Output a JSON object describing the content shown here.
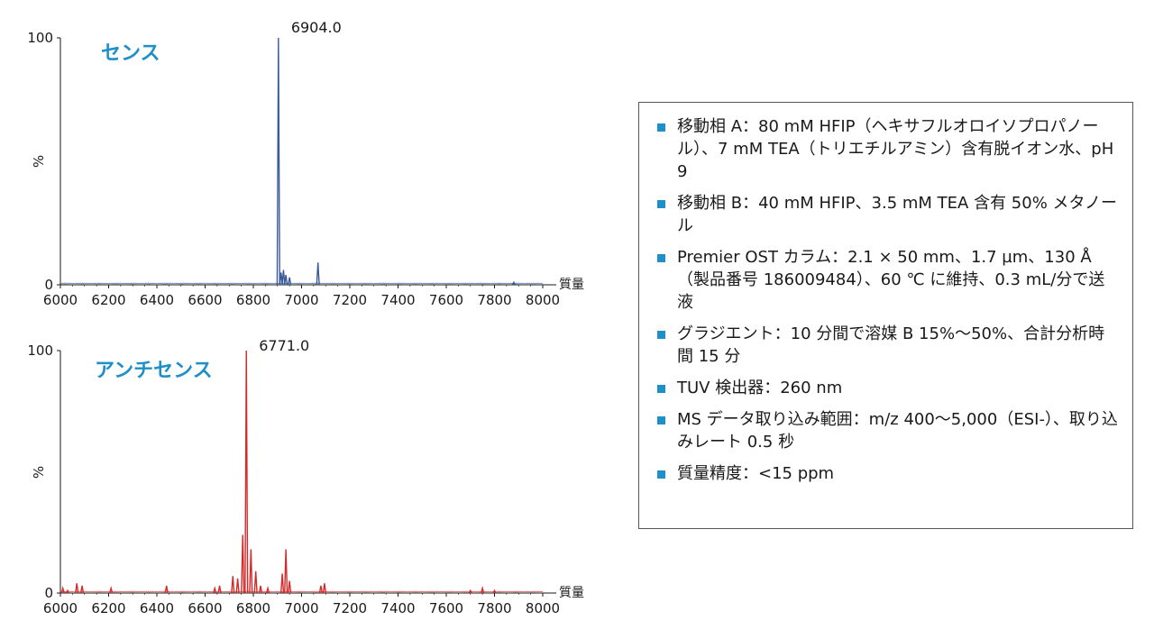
{
  "chart_data": [
    {
      "type": "bar",
      "title": "センス",
      "annotation": "6904.0",
      "xlabel": "質量",
      "ylabel": "%",
      "xlim": [
        6000,
        8000
      ],
      "ylim": [
        0,
        100
      ],
      "xticks": [
        "6000",
        "6200",
        "6400",
        "6600",
        "6800",
        "7000",
        "7200",
        "7400",
        "7600",
        "7800",
        "8000"
      ],
      "yticks": [
        "0",
        "100"
      ],
      "color": "#3a5a9a",
      "grid": false,
      "x": [
        6904,
        6915,
        6925,
        6935,
        6950,
        7068,
        7880
      ],
      "values": [
        100,
        5,
        6,
        4,
        3,
        9,
        1
      ]
    },
    {
      "type": "bar",
      "title": "アンチセンス",
      "annotation": "6771.0",
      "xlabel": "質量",
      "ylabel": "%",
      "xlim": [
        6000,
        8000
      ],
      "ylim": [
        0,
        100
      ],
      "xticks": [
        "6000",
        "6200",
        "6400",
        "6600",
        "6800",
        "7000",
        "7200",
        "7400",
        "7600",
        "7800",
        "8000"
      ],
      "yticks": [
        "0",
        "100"
      ],
      "color": "#d42a2a",
      "grid": false,
      "x": [
        6010,
        6030,
        6068,
        6090,
        6210,
        6440,
        6640,
        6660,
        6715,
        6735,
        6756,
        6771,
        6790,
        6810,
        6830,
        6860,
        6920,
        6935,
        6950,
        7080,
        7095,
        7700,
        7750,
        7800
      ],
      "values": [
        2,
        1,
        4,
        3,
        2,
        3,
        2,
        3,
        7,
        6,
        24,
        100,
        18,
        9,
        3,
        2,
        8,
        18,
        5,
        3,
        4,
        1,
        2,
        1
      ]
    }
  ],
  "conditions": {
    "items": [
      "移動相 A：80 mM HFIP（ヘキサフルオロイソプロパノール）、7 mM TEA（トリエチルアミン）含有脱イオン水、pH 9",
      "移動相 B：40 mM HFIP、3.5 mM TEA 含有 50% メタノール",
      "Premier OST カラム：2.1 × 50 mm、1.7 µm、130 Å（製品番号 186009484）、60 ℃ に維持、0.3 mL/分で送液",
      "グラジエント：10 分間で溶媒 B 15%～50%、合計分析時間 15 分",
      "TUV 検出器：260 nm",
      "MS データ取り込み範囲：m/z 400～5,000（ESI-）、取り込みレート 0.5 秒",
      "質量精度：<15 ppm"
    ]
  }
}
